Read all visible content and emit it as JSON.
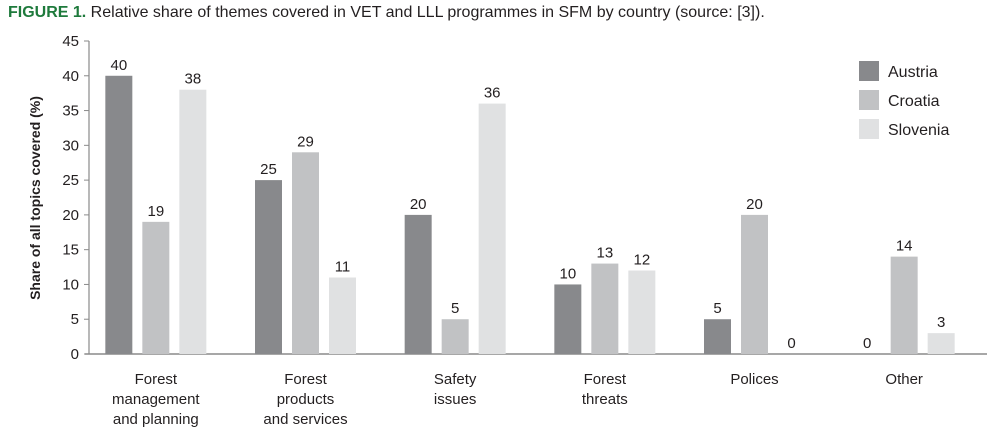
{
  "caption": {
    "figure_label": "FIGURE 1.",
    "text": " Relative share of themes covered in VET and LLL programmes in SFM by country (source: [3]).",
    "figure_label_color": "#1e7a3c"
  },
  "chart_data": {
    "type": "bar",
    "title": "Relative share of themes covered in VET and LLL programmes in SFM by country (source: [3]).",
    "xlabel": "",
    "ylabel": "Share of all topics covered (%)",
    "ylim": [
      0,
      45
    ],
    "yticks": [
      0,
      5,
      10,
      15,
      20,
      25,
      30,
      35,
      40,
      45
    ],
    "grid": false,
    "legend_position": "top-right",
    "categories": [
      [
        "Forest",
        "management",
        "and planning"
      ],
      [
        "Forest",
        "products",
        "and services"
      ],
      [
        "Safety",
        "issues"
      ],
      [
        "Forest",
        "threats"
      ],
      [
        "Polices"
      ],
      [
        "Other"
      ]
    ],
    "series": [
      {
        "name": "Austria",
        "color": "#88898c",
        "values": [
          40,
          25,
          20,
          10,
          5,
          0
        ]
      },
      {
        "name": "Croatia",
        "color": "#c1c2c4",
        "values": [
          19,
          29,
          5,
          13,
          20,
          14
        ]
      },
      {
        "name": "Slovenia",
        "color": "#e0e1e2",
        "values": [
          38,
          11,
          36,
          12,
          0,
          3
        ]
      }
    ]
  }
}
